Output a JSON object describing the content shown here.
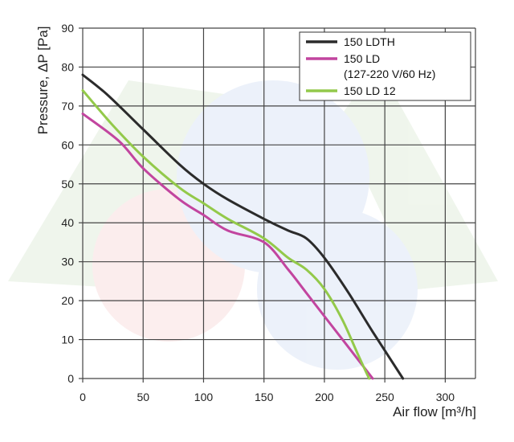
{
  "chart_data": {
    "type": "line",
    "title": "",
    "xlabel": "Air flow [m³/h]",
    "ylabel": "Pressure, ΔP [Pa]",
    "xlim": [
      0,
      325
    ],
    "ylim": [
      0,
      90
    ],
    "xticks": [
      0,
      50,
      100,
      150,
      200,
      250,
      300
    ],
    "yticks": [
      0,
      10,
      20,
      30,
      40,
      50,
      60,
      70,
      80,
      90
    ],
    "grid": true,
    "legend_position": "top-right",
    "series": [
      {
        "name": "150 LDTH",
        "legend_lines": [
          "150 LDTH"
        ],
        "color": "#2b2b2b",
        "x": [
          0,
          20,
          50,
          80,
          100,
          120,
          150,
          170,
          185,
          200,
          220,
          240,
          265
        ],
        "y": [
          78,
          73,
          64,
          55,
          50,
          46,
          41,
          38,
          36,
          31,
          22,
          12,
          0
        ]
      },
      {
        "name": "150 LD (127-220 V/60 Hz)",
        "legend_lines": [
          "150 LD",
          "(127-220 V/60 Hz)"
        ],
        "color": "#c2459f",
        "x": [
          0,
          30,
          50,
          80,
          100,
          120,
          150,
          170,
          185,
          200,
          220,
          240
        ],
        "y": [
          68,
          61,
          54,
          46,
          42,
          38,
          35,
          28,
          22,
          16,
          8,
          0
        ]
      },
      {
        "name": "150 LD 12",
        "legend_lines": [
          "150 LD 12"
        ],
        "color": "#93c94a",
        "x": [
          0,
          25,
          50,
          80,
          100,
          120,
          150,
          170,
          185,
          200,
          215,
          228,
          237
        ],
        "y": [
          74,
          65,
          57,
          49,
          45,
          41,
          36,
          31,
          28,
          23,
          15,
          6,
          0
        ]
      }
    ]
  }
}
